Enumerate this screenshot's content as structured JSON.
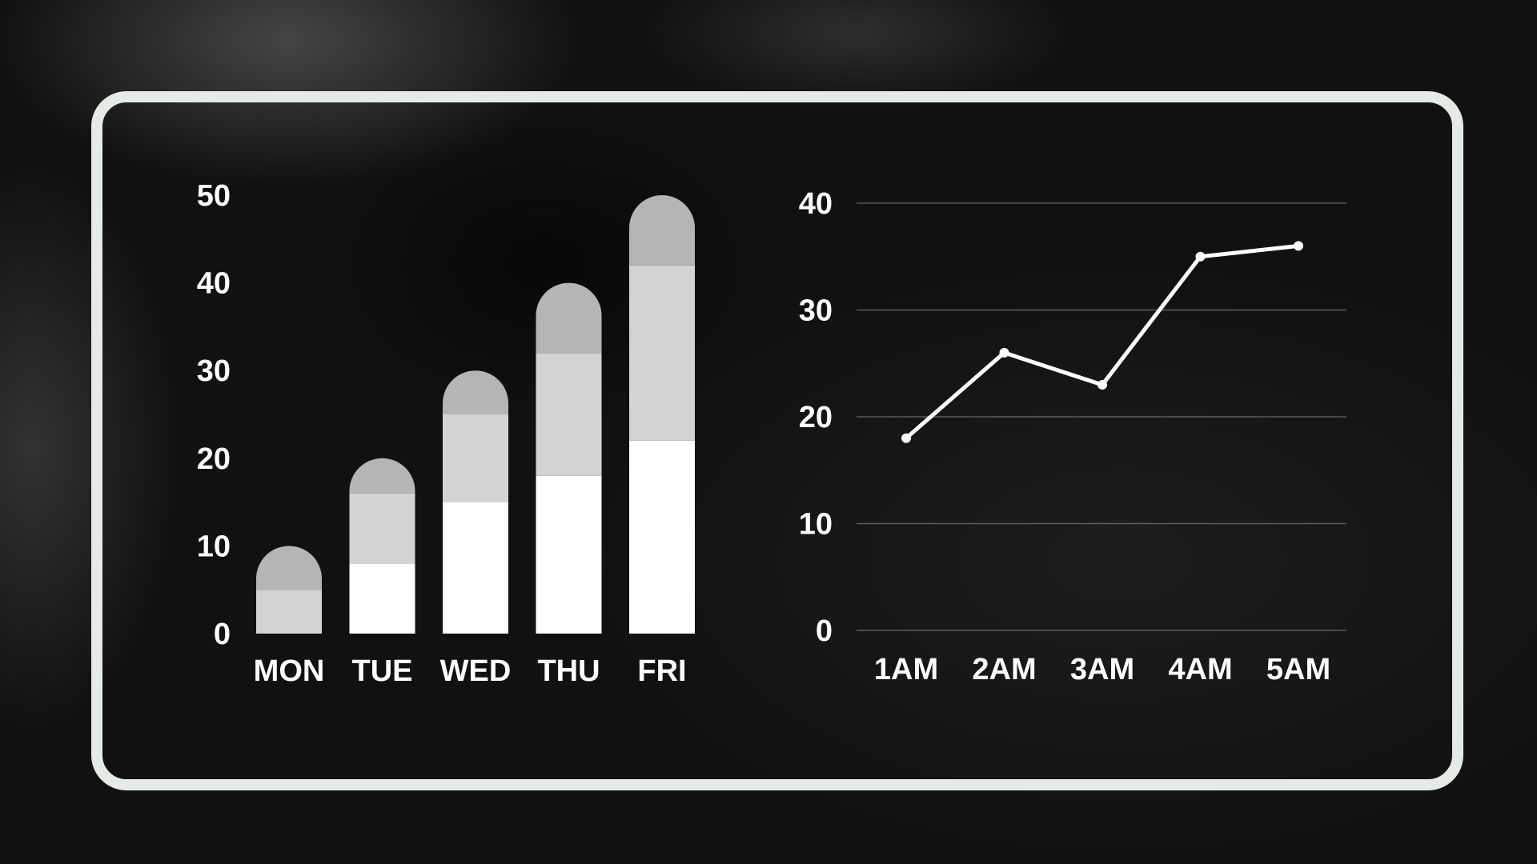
{
  "chart_data": [
    {
      "type": "bar",
      "stacked": true,
      "categories": [
        "MON",
        "TUE",
        "WED",
        "THU",
        "FRI"
      ],
      "series": [
        {
          "values": [
            0,
            8,
            15,
            18,
            22
          ],
          "color": "#ffffff"
        },
        {
          "values": [
            5,
            8,
            10,
            14,
            20
          ],
          "color": "#d3d3d3"
        },
        {
          "values": [
            5,
            4,
            5,
            8,
            8
          ],
          "color": "#b4b6b3"
        }
      ],
      "yticks": [
        0,
        10,
        20,
        30,
        40,
        50
      ],
      "ylim": [
        0,
        50
      ],
      "grid": false,
      "legend": false
    },
    {
      "type": "line",
      "x": [
        "1AM",
        "2AM",
        "3AM",
        "4AM",
        "5AM"
      ],
      "series": [
        {
          "values": [
            18,
            26,
            23,
            35,
            36
          ],
          "color": "#ffffff"
        }
      ],
      "yticks": [
        0,
        10,
        20,
        30,
        40
      ],
      "ylim": [
        0,
        40
      ],
      "grid": true,
      "legend": false
    }
  ],
  "colors": {
    "frame": "#e3ebe4",
    "text": "#ffffff",
    "grid": "#5a5a5a"
  }
}
